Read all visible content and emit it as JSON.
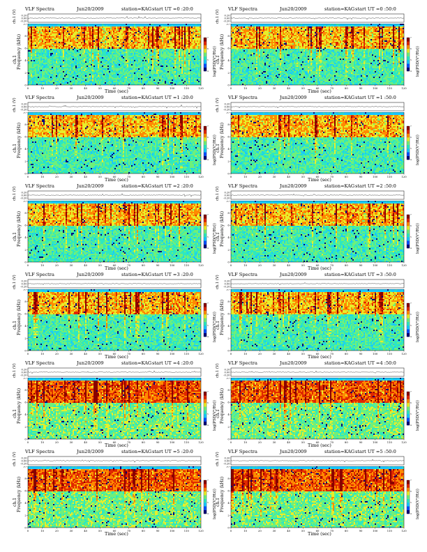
{
  "figure": {
    "panels": [
      {
        "kind": "VLF Spectra",
        "date": "Jun20/2009",
        "station": "station=KAG",
        "start": "start UT =0 :20:0"
      },
      {
        "kind": "VLF Spectra",
        "date": "Jun20/2009",
        "station": "station=KAG",
        "start": "start UT =0 :50:0"
      },
      {
        "kind": "VLF Spectra",
        "date": "Jun20/2009",
        "station": "station=KAG",
        "start": "start UT =1 :20:0"
      },
      {
        "kind": "VLF Spectra",
        "date": "Jun20/2009",
        "station": "station=KAG",
        "start": "start UT =1 :50:0"
      },
      {
        "kind": "VLF Spectra",
        "date": "Jun20/2009",
        "station": "station=KAG",
        "start": "start UT =2 :20:0"
      },
      {
        "kind": "VLF Spectra",
        "date": "Jun20/2009",
        "station": "station=KAG",
        "start": "start UT =2 :50:0"
      },
      {
        "kind": "VLF Spectra",
        "date": "Jun20/2009",
        "station": "station=KAG",
        "start": "start UT =3 :20:0"
      },
      {
        "kind": "VLF Spectra",
        "date": "Jun20/2009",
        "station": "station=KAG",
        "start": "start UT =3 :50:0"
      },
      {
        "kind": "VLF Spectra",
        "date": "Jun20/2009",
        "station": "station=KAG",
        "start": "start UT =4 :20:0"
      },
      {
        "kind": "VLF Spectra",
        "date": "Jun20/2009",
        "station": "station=KAG",
        "start": "start UT =4 :50:0"
      },
      {
        "kind": "VLF Spectra",
        "date": "Jun20/2009",
        "station": "station=KAG",
        "start": "start UT =5 :20:0"
      },
      {
        "kind": "VLF Spectra",
        "date": "Jun20/2009",
        "station": "station=KAG",
        "start": "start UT =5 :50:0"
      }
    ],
    "labels": {
      "waveform_ylabel": "ch.1 (V)",
      "spectrogram_ylabel_channel": "ch.1",
      "spectrogram_ylabel": "Frequency (kHz)",
      "xlabel": "Time (sec)",
      "colorbar_label": "log(PSD(V²/Hz))"
    },
    "ticks": {
      "waveform_y": [
        "0.20",
        "0.00",
        "-0.20"
      ],
      "frequency_y": [
        "0",
        "2",
        "4",
        "6",
        "8",
        "10"
      ],
      "time_x": [
        "0",
        "10",
        "20",
        "30",
        "40",
        "50",
        "60",
        "70",
        "80",
        "90",
        "100",
        "110",
        "120"
      ],
      "colorbar": [
        "4",
        "5",
        "6",
        "7"
      ]
    },
    "colormap": [
      "#00007a",
      "#0050ff",
      "#19c8ff",
      "#2ee8c0",
      "#6ff07a",
      "#e8ee2a",
      "#ff8a00",
      "#e02800",
      "#8a0000"
    ]
  },
  "chart_data": {
    "type": "heatmap",
    "grid": "2 columns x 6 rows of small multiples",
    "x": {
      "label": "Time (sec)",
      "range": [
        0,
        120
      ]
    },
    "y": {
      "label": "Frequency (kHz)",
      "range": [
        0,
        10
      ]
    },
    "waveform": {
      "label": "ch.1 (V)",
      "range": [
        -0.2,
        0.2
      ]
    },
    "colorbar": {
      "label": "log(PSD(V²/Hz))",
      "range": [
        4,
        7
      ]
    }
  }
}
